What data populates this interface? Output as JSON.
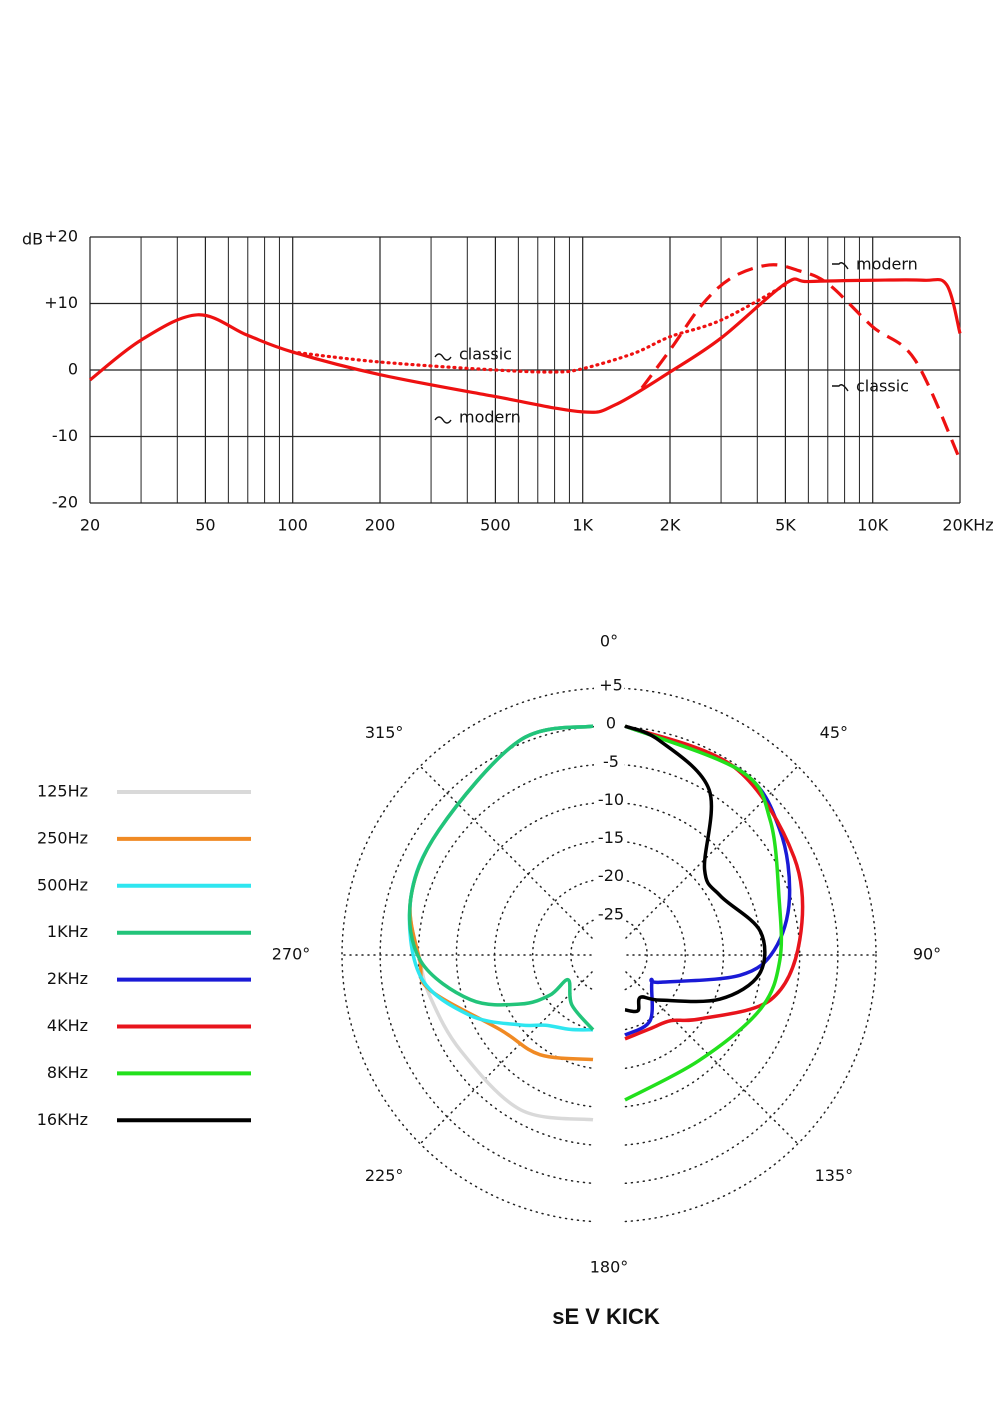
{
  "chart_data": [
    {
      "type": "line",
      "y_label": "dB",
      "xscale": "log",
      "xlim": [
        20,
        20000
      ],
      "ylim": [
        -20,
        20
      ],
      "xticks": [
        20,
        50,
        100,
        200,
        500,
        {
          "value": 1000,
          "label": "1K"
        },
        {
          "value": 2000,
          "label": "2K"
        },
        {
          "value": 5000,
          "label": "5K"
        },
        {
          "value": 10000,
          "label": "10K"
        },
        {
          "value": 20000,
          "label": "20KHz"
        }
      ],
      "x_minor_ticks": [
        30,
        40,
        60,
        70,
        80,
        90,
        300,
        400,
        600,
        700,
        800,
        900,
        3000,
        4000,
        6000,
        7000,
        8000,
        9000
      ],
      "yticks": [
        {
          "value": -20,
          "label": "-20"
        },
        {
          "value": -10,
          "label": "-10"
        },
        0,
        {
          "value": 10,
          "label": "+10"
        },
        {
          "value": 20,
          "label": "+20"
        }
      ],
      "grid": true,
      "series": [
        {
          "color": "#ee1111",
          "style": "solid",
          "x": [
            20,
            30,
            47,
            70,
            100,
            200,
            500,
            1000,
            1300,
            2000,
            3000,
            5000,
            6000,
            10000,
            15000,
            18000,
            20000
          ],
          "values": [
            -1.5,
            4.5,
            8.3,
            5.2,
            2.7,
            -0.7,
            -4,
            -6.3,
            -5.2,
            -0.3,
            4.8,
            13,
            13.3,
            13.5,
            13.5,
            12.8,
            5.5
          ]
        },
        {
          "color": "#ee1111",
          "style": "dotted",
          "x": [
            100,
            200,
            500,
            800,
            1000,
            1500,
            2000,
            3000,
            5000
          ],
          "values": [
            2.7,
            1.2,
            0,
            -0.3,
            0.2,
            2.5,
            5,
            7.5,
            12.8
          ]
        },
        {
          "color": "#ee1111",
          "style": "dashed",
          "x": [
            1600,
            2000,
            2600,
            3300,
            4400,
            5500,
            7000,
            10000,
            14000,
            20000
          ],
          "values": [
            -2.7,
            3,
            10,
            14,
            15.8,
            15,
            13,
            6.5,
            1.5,
            -13.5
          ]
        }
      ],
      "annotations": [
        "classic",
        "modern",
        "modern",
        "classic"
      ]
    },
    {
      "type": "polar",
      "title": "sE V KICK",
      "rlim": [
        -30,
        5
      ],
      "rticks": [
        {
          "value": 5,
          "label": "+5"
        },
        0,
        -5,
        -10,
        -15,
        -20,
        -25
      ],
      "angle_ticks": [
        {
          "value": 0,
          "label": "0°"
        },
        {
          "value": 45,
          "label": "45°"
        },
        {
          "value": 90,
          "label": "90°"
        },
        {
          "value": 135,
          "label": "135°"
        },
        {
          "value": 180,
          "label": "180°"
        },
        {
          "value": 225,
          "label": "225°"
        },
        {
          "value": 270,
          "label": "270°"
        },
        {
          "value": 315,
          "label": "315°"
        }
      ],
      "series": [
        {
          "name": "125Hz",
          "color": "#d9d9d9",
          "angles": [
            360,
            341,
            309,
            287,
            268,
            255,
            234,
            205,
            180
          ],
          "values": [
            0,
            -0.3,
            -4,
            -5,
            -7.3,
            -8,
            -8.6,
            -7.6,
            -8.4
          ]
        },
        {
          "name": "250Hz",
          "color": "#f08a24",
          "angles": [
            360,
            341,
            309,
            287,
            268,
            258,
            231,
            208,
            180
          ],
          "values": [
            0,
            -0.3,
            -4,
            -5,
            -7.3,
            -8.1,
            -14.4,
            -15.2,
            -16.3
          ]
        },
        {
          "name": "500Hz",
          "color": "#2ee6f0",
          "angles": [
            360,
            341,
            309,
            287,
            263,
            244,
            226,
            214,
            197,
            180
          ],
          "values": [
            0,
            -0.3,
            -4,
            -5,
            -7.2,
            -12,
            -16.8,
            -18.9,
            -19.8,
            -20.2
          ]
        },
        {
          "name": "1KHz",
          "color": "#22c47a",
          "angles": [
            360,
            341,
            309,
            287,
            268,
            250,
            236,
            227,
            225,
            203,
            180
          ],
          "values": [
            0,
            -0.3,
            -4,
            -5,
            -7.4,
            -12.9,
            -18.5,
            -22.3,
            -25.4,
            -22.9,
            -20.2
          ]
        },
        {
          "name": "2KHz",
          "color": "#1a1ad6",
          "angles": [
            0,
            32,
            51,
            71,
            88,
            100,
            128,
            135,
            159,
            180
          ],
          "values": [
            0,
            -1.5,
            -3.9,
            -7.2,
            -10.4,
            -14.7,
            -24.2,
            -25,
            -20.8,
            -19.5
          ]
        },
        {
          "name": "4KHz",
          "color": "#e8141c",
          "angles": [
            0,
            30,
            60,
            85,
            107,
            130,
            145,
            160,
            180
          ],
          "values": [
            0,
            -1.5,
            -4.4,
            -7,
            -10,
            -17,
            -19.5,
            -19.8,
            -19
          ]
        },
        {
          "name": "8KHz",
          "color": "#22e01c",
          "angles": [
            0,
            32,
            47,
            70,
            92,
            112,
            145,
            180
          ],
          "values": [
            0,
            -1.5,
            -4,
            -8.5,
            -9.7,
            -10.9,
            -13.1,
            -11
          ]
        },
        {
          "name": "16KHz",
          "color": "#000000",
          "angles": [
            0,
            9,
            27,
            43,
            58,
            80,
            98,
            115,
            142,
            160,
            167,
            180
          ],
          "values": [
            0,
            -1.5,
            -5.7,
            -14.7,
            -15.3,
            -12,
            -12.2,
            -16.3,
            -22.5,
            -24.1,
            -22.5,
            -22.8
          ]
        }
      ]
    }
  ]
}
